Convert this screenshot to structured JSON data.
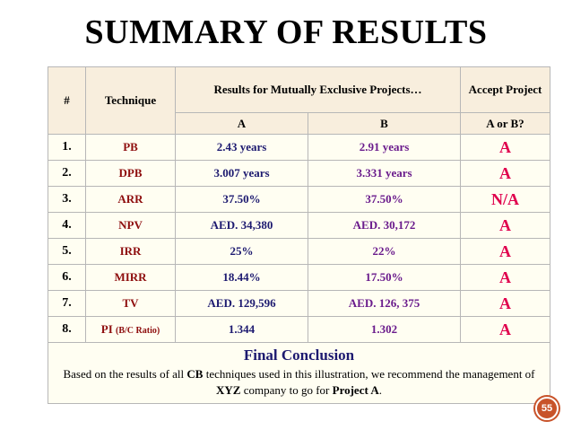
{
  "title": "SUMMARY OF RESULTS",
  "table": {
    "header": {
      "num": "#",
      "technique": "Technique",
      "results": "Results for Mutually Exclusive Projects…",
      "accept": "Accept Project",
      "col_a": "A",
      "col_b": "B",
      "accept_sub": "A or B?"
    },
    "rows": [
      {
        "num": "1.",
        "technique": "PB",
        "technique_note": "",
        "a": "2.43 years",
        "b": "2.91 years",
        "accept": "A"
      },
      {
        "num": "2.",
        "technique": "DPB",
        "technique_note": "",
        "a": "3.007 years",
        "b": "3.331 years",
        "accept": "A"
      },
      {
        "num": "3.",
        "technique": "ARR",
        "technique_note": "",
        "a": "37.50%",
        "b": "37.50%",
        "accept": "N/A"
      },
      {
        "num": "4.",
        "technique": "NPV",
        "technique_note": "",
        "a": "AED. 34,380",
        "b": "AED. 30,172",
        "accept": "A"
      },
      {
        "num": "5.",
        "technique": "IRR",
        "technique_note": "",
        "a": "25%",
        "b": "22%",
        "accept": "A"
      },
      {
        "num": "6.",
        "technique": "MIRR",
        "technique_note": "",
        "a": "18.44%",
        "b": "17.50%",
        "accept": "A"
      },
      {
        "num": "7.",
        "technique": "TV",
        "technique_note": "",
        "a": "AED. 129,596",
        "b": "AED. 126, 375",
        "accept": "A"
      },
      {
        "num": "8.",
        "technique": "PI",
        "technique_note": "(B/C Ratio)",
        "a": "1.344",
        "b": "1.302",
        "accept": "A"
      }
    ]
  },
  "conclusion": {
    "title": "Final Conclusion",
    "text_1": "Based on the results of all ",
    "text_cb": "CB",
    "text_2": " techniques used in this illustration, we recommend the management of ",
    "text_xyz": "XYZ",
    "text_3": " company to go for ",
    "text_project": "Project A",
    "text_4": "."
  },
  "page_number": "55",
  "colors": {
    "technique": "#8e0e0e",
    "value_a": "#1d1a70",
    "value_b": "#6a1b8c",
    "accept": "#e0004d",
    "badge": "#c8532a"
  }
}
